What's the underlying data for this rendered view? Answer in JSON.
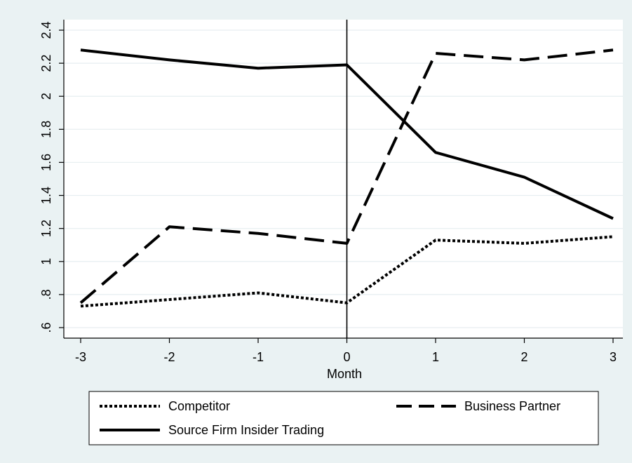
{
  "chart_data": {
    "type": "line",
    "title": "",
    "xlabel": "Month",
    "ylabel": "",
    "x": [
      -3,
      -2,
      -1,
      0,
      1,
      2,
      3
    ],
    "x_tick_labels": [
      "-3",
      "-2",
      "-1",
      "0",
      "1",
      "2",
      "3"
    ],
    "xlim": [
      -3,
      3
    ],
    "y_ticks": [
      0.6,
      0.8,
      1,
      1.2,
      1.4,
      1.6,
      1.8,
      2,
      2.2,
      2.4
    ],
    "y_tick_labels": [
      ".6",
      ".8",
      "1",
      "1.2",
      "1.4",
      "1.6",
      "1.8",
      "2",
      "2.2",
      "2.4"
    ],
    "ylim": [
      0.6,
      2.4
    ],
    "grid": true,
    "legend_position": "bottom",
    "vertical_reference_line_x": 0,
    "series": [
      {
        "name": "Competitor",
        "style": "dotted",
        "color": "#000000",
        "values": [
          0.73,
          0.77,
          0.81,
          0.75,
          1.13,
          1.11,
          1.15
        ]
      },
      {
        "name": "Business Partner",
        "style": "dashed",
        "color": "#000000",
        "values": [
          0.75,
          1.21,
          1.17,
          1.11,
          2.26,
          2.22,
          2.28
        ]
      },
      {
        "name": "Source Firm Insider Trading",
        "style": "solid",
        "color": "#000000",
        "values": [
          2.28,
          2.22,
          2.17,
          2.19,
          1.66,
          1.51,
          1.26
        ]
      }
    ]
  },
  "colors": {
    "background": "#eaf2f3",
    "plot_area": "#ffffff",
    "grid": "#e6eef0",
    "line": "#000000"
  }
}
